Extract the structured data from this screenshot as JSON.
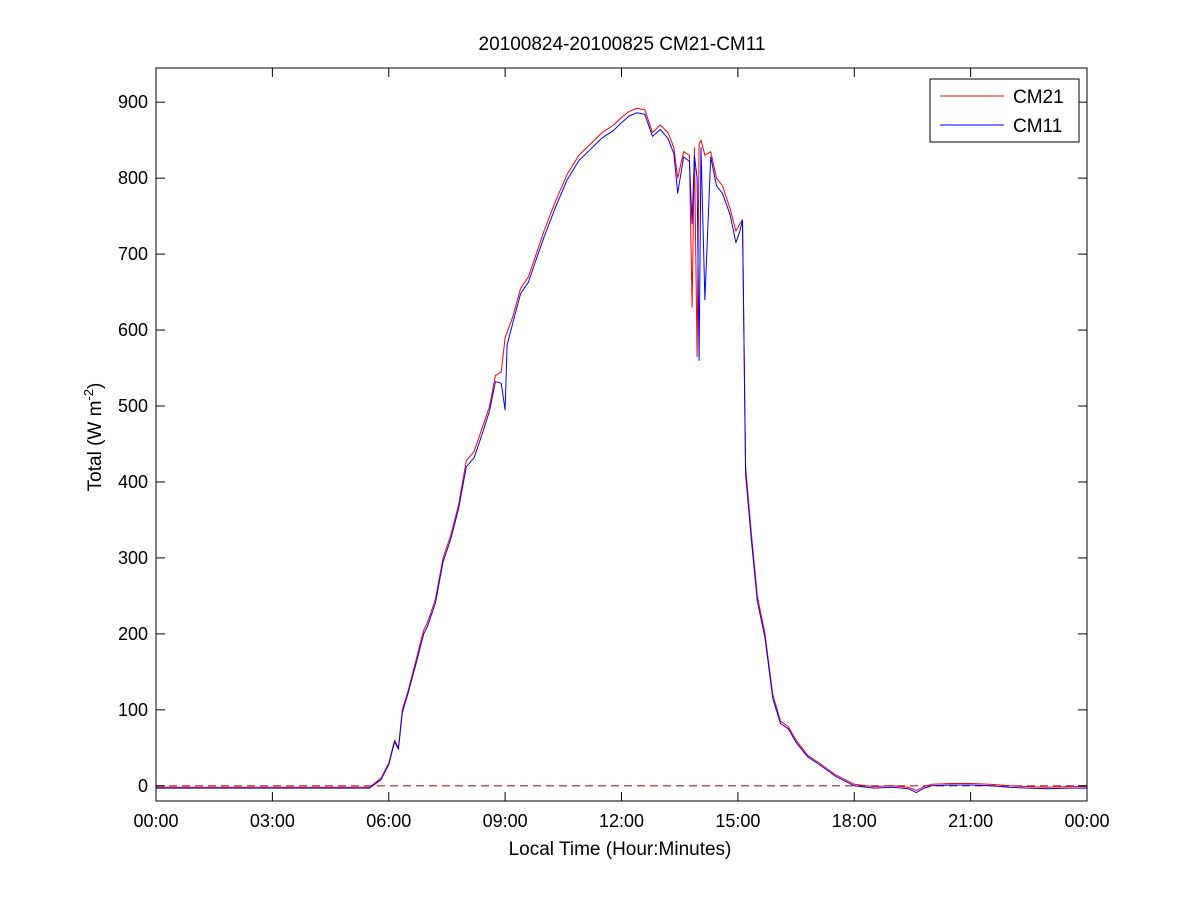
{
  "chart_data": {
    "type": "line",
    "title": "20100824-20100825 CM21-CM11",
    "xlabel": "Local Time (Hour:Minutes)",
    "ylabel": {
      "prefix": "Total (W m",
      "exponent": "-2",
      "suffix": ")"
    },
    "xlim_hours": [
      0,
      24
    ],
    "ylim": [
      -20,
      945
    ],
    "x_ticks": [
      {
        "hours": 0,
        "label": "00:00"
      },
      {
        "hours": 3,
        "label": "03:00"
      },
      {
        "hours": 6,
        "label": "06:00"
      },
      {
        "hours": 9,
        "label": "09:00"
      },
      {
        "hours": 12,
        "label": "12:00"
      },
      {
        "hours": 15,
        "label": "15:00"
      },
      {
        "hours": 18,
        "label": "18:00"
      },
      {
        "hours": 21,
        "label": "21:00"
      },
      {
        "hours": 24,
        "label": "00:00"
      }
    ],
    "y_ticks": [
      0,
      100,
      200,
      300,
      400,
      500,
      600,
      700,
      800,
      900
    ],
    "grid": false,
    "legend_position": "top-right",
    "reference_line": {
      "y": 0,
      "style": "dashed",
      "color": "#aa2222"
    },
    "series": [
      {
        "name": "CM21",
        "color": "#ff0000",
        "points": [
          [
            0,
            -2
          ],
          [
            5.5,
            -2
          ],
          [
            5.8,
            10
          ],
          [
            6.0,
            30
          ],
          [
            6.15,
            60
          ],
          [
            6.25,
            50
          ],
          [
            6.35,
            100
          ],
          [
            6.5,
            125
          ],
          [
            6.7,
            165
          ],
          [
            6.9,
            205
          ],
          [
            7.0,
            215
          ],
          [
            7.2,
            245
          ],
          [
            7.4,
            300
          ],
          [
            7.6,
            330
          ],
          [
            7.8,
            370
          ],
          [
            8.0,
            428
          ],
          [
            8.2,
            440
          ],
          [
            8.4,
            470
          ],
          [
            8.6,
            500
          ],
          [
            8.75,
            540
          ],
          [
            8.9,
            545
          ],
          [
            9.0,
            590
          ],
          [
            9.2,
            618
          ],
          [
            9.4,
            655
          ],
          [
            9.6,
            670
          ],
          [
            9.8,
            700
          ],
          [
            10.0,
            730
          ],
          [
            10.3,
            770
          ],
          [
            10.6,
            805
          ],
          [
            10.9,
            830
          ],
          [
            11.2,
            845
          ],
          [
            11.5,
            860
          ],
          [
            11.8,
            870
          ],
          [
            12.0,
            880
          ],
          [
            12.2,
            888
          ],
          [
            12.4,
            892
          ],
          [
            12.6,
            890
          ],
          [
            12.8,
            860
          ],
          [
            13.0,
            870
          ],
          [
            13.2,
            860
          ],
          [
            13.35,
            840
          ],
          [
            13.45,
            800
          ],
          [
            13.6,
            835
          ],
          [
            13.75,
            830
          ],
          [
            13.82,
            630
          ],
          [
            13.88,
            840
          ],
          [
            13.95,
            565
          ],
          [
            14.0,
            845
          ],
          [
            14.05,
            850
          ],
          [
            14.15,
            830
          ],
          [
            14.3,
            835
          ],
          [
            14.45,
            800
          ],
          [
            14.6,
            790
          ],
          [
            14.8,
            760
          ],
          [
            14.95,
            730
          ],
          [
            15.05,
            740
          ],
          [
            15.12,
            745
          ],
          [
            15.2,
            420
          ],
          [
            15.35,
            330
          ],
          [
            15.5,
            250
          ],
          [
            15.7,
            200
          ],
          [
            15.9,
            120
          ],
          [
            16.1,
            85
          ],
          [
            16.3,
            78
          ],
          [
            16.5,
            60
          ],
          [
            16.8,
            40
          ],
          [
            17.1,
            30
          ],
          [
            17.5,
            15
          ],
          [
            18.0,
            2
          ],
          [
            18.5,
            -1
          ],
          [
            19.0,
            0
          ],
          [
            19.4,
            -2
          ],
          [
            19.6,
            -6
          ],
          [
            19.8,
            -1
          ],
          [
            20.0,
            2
          ],
          [
            20.5,
            3
          ],
          [
            21.0,
            3
          ],
          [
            21.5,
            2
          ],
          [
            22.0,
            0
          ],
          [
            22.5,
            -1
          ],
          [
            23.0,
            -2
          ],
          [
            23.5,
            -1
          ],
          [
            24,
            -1
          ]
        ]
      },
      {
        "name": "CM11",
        "color": "#0000ff",
        "points": [
          [
            0,
            -3
          ],
          [
            5.5,
            -3
          ],
          [
            5.8,
            8
          ],
          [
            6.0,
            28
          ],
          [
            6.15,
            58
          ],
          [
            6.25,
            48
          ],
          [
            6.35,
            96
          ],
          [
            6.5,
            122
          ],
          [
            6.7,
            160
          ],
          [
            6.9,
            200
          ],
          [
            7.0,
            210
          ],
          [
            7.2,
            240
          ],
          [
            7.4,
            295
          ],
          [
            7.6,
            325
          ],
          [
            7.8,
            365
          ],
          [
            8.0,
            420
          ],
          [
            8.2,
            432
          ],
          [
            8.4,
            462
          ],
          [
            8.6,
            494
          ],
          [
            8.75,
            532
          ],
          [
            8.9,
            530
          ],
          [
            9.0,
            495
          ],
          [
            9.05,
            580
          ],
          [
            9.2,
            610
          ],
          [
            9.4,
            648
          ],
          [
            9.6,
            663
          ],
          [
            9.8,
            693
          ],
          [
            10.0,
            722
          ],
          [
            10.3,
            762
          ],
          [
            10.6,
            798
          ],
          [
            10.9,
            823
          ],
          [
            11.2,
            838
          ],
          [
            11.5,
            853
          ],
          [
            11.8,
            863
          ],
          [
            12.0,
            873
          ],
          [
            12.2,
            882
          ],
          [
            12.4,
            886
          ],
          [
            12.6,
            884
          ],
          [
            12.8,
            855
          ],
          [
            13.0,
            864
          ],
          [
            13.2,
            852
          ],
          [
            13.35,
            832
          ],
          [
            13.45,
            780
          ],
          [
            13.6,
            828
          ],
          [
            13.75,
            822
          ],
          [
            13.82,
            740
          ],
          [
            13.88,
            830
          ],
          [
            13.95,
            800
          ],
          [
            14.0,
            560
          ],
          [
            14.05,
            840
          ],
          [
            14.15,
            640
          ],
          [
            14.3,
            828
          ],
          [
            14.45,
            790
          ],
          [
            14.6,
            780
          ],
          [
            14.8,
            752
          ],
          [
            14.95,
            715
          ],
          [
            15.05,
            730
          ],
          [
            15.12,
            745
          ],
          [
            15.2,
            410
          ],
          [
            15.35,
            322
          ],
          [
            15.5,
            243
          ],
          [
            15.7,
            195
          ],
          [
            15.9,
            115
          ],
          [
            16.1,
            82
          ],
          [
            16.3,
            75
          ],
          [
            16.5,
            57
          ],
          [
            16.8,
            38
          ],
          [
            17.1,
            28
          ],
          [
            17.5,
            13
          ],
          [
            18.0,
            0
          ],
          [
            18.5,
            -3
          ],
          [
            19.0,
            -2
          ],
          [
            19.4,
            -4
          ],
          [
            19.6,
            -9
          ],
          [
            19.8,
            -3
          ],
          [
            20.0,
            0
          ],
          [
            20.5,
            1
          ],
          [
            21.0,
            1
          ],
          [
            21.5,
            0
          ],
          [
            22.0,
            -2
          ],
          [
            22.5,
            -3
          ],
          [
            23.0,
            -4
          ],
          [
            23.5,
            -3
          ],
          [
            24,
            -3
          ]
        ]
      }
    ]
  }
}
